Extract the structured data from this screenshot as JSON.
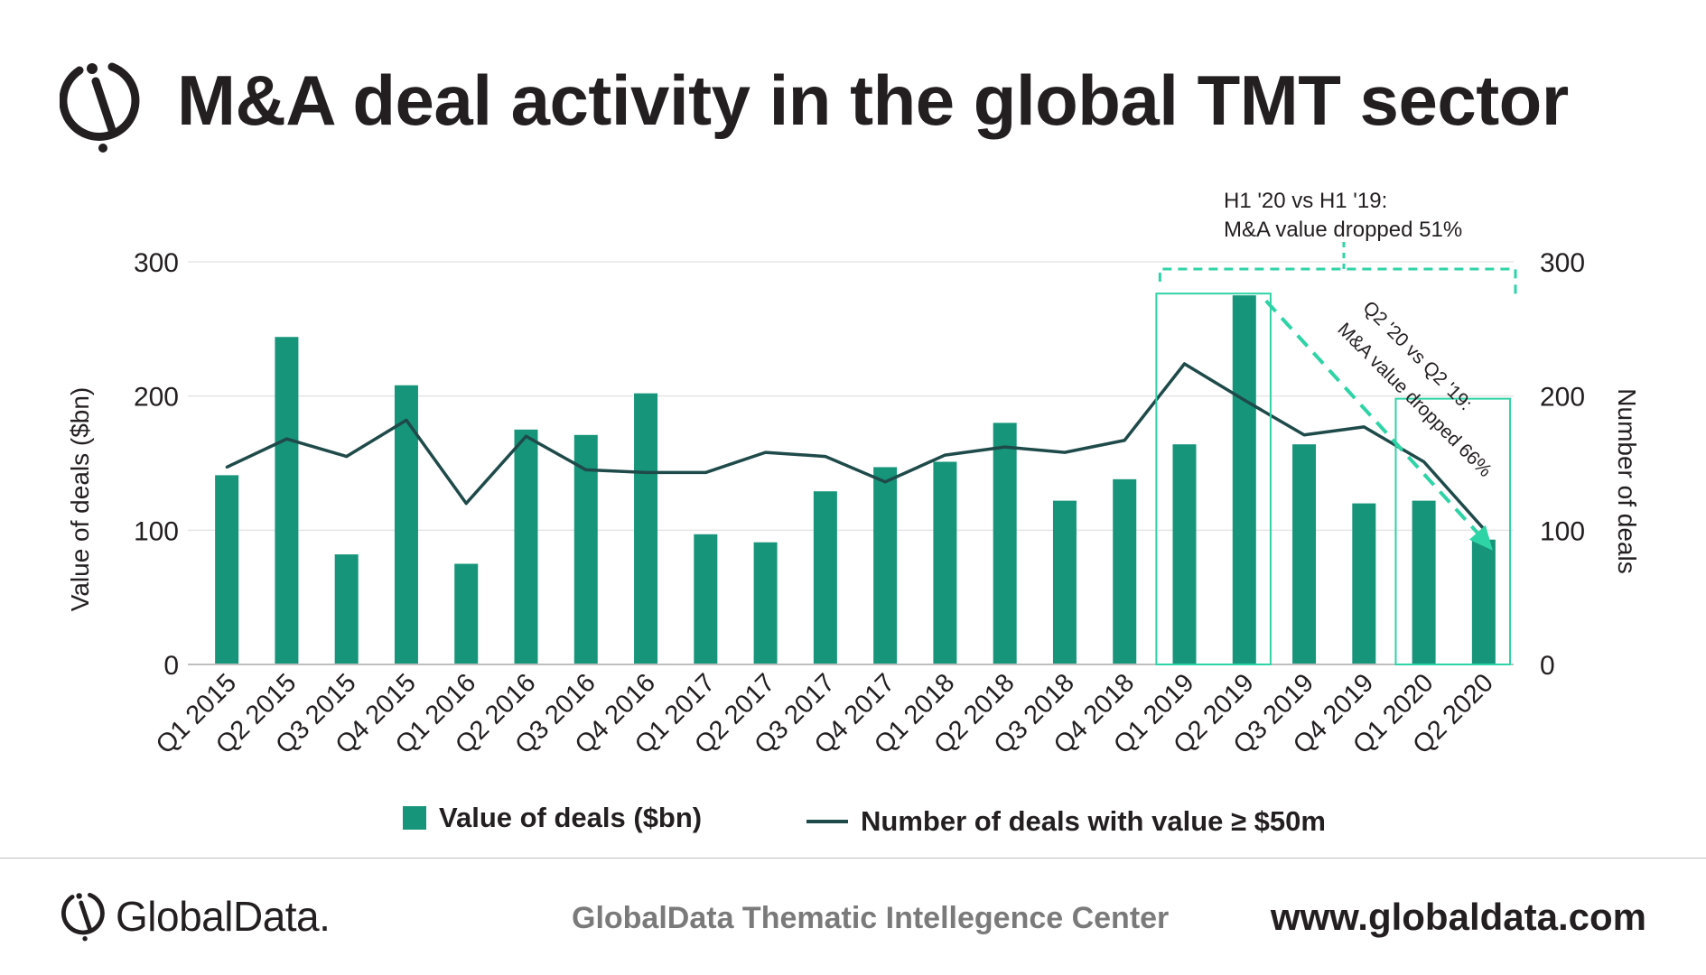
{
  "header": {
    "title": "M&A deal activity in the global TMT sector",
    "logo_icon": "globaldata-logo-icon"
  },
  "colors": {
    "bar": "#16957a",
    "line": "#1f4a4a",
    "annotation": "#2ed3a6",
    "grid": "#e5e5e5",
    "axis": "#bfbfbf",
    "text": "#231f20"
  },
  "chart_data": {
    "type": "bar",
    "title": "M&A deal activity in the global TMT sector",
    "categories": [
      "Q1 2015",
      "Q2 2015",
      "Q3 2015",
      "Q4 2015",
      "Q1 2016",
      "Q2 2016",
      "Q3 2016",
      "Q4 2016",
      "Q1 2017",
      "Q2 2017",
      "Q3 2017",
      "Q4 2017",
      "Q1 2018",
      "Q2 2018",
      "Q3 2018",
      "Q4 2018",
      "Q1 2019",
      "Q2 2019",
      "Q3 2019",
      "Q4 2019",
      "Q1 2020",
      "Q2 2020"
    ],
    "series": [
      {
        "name": "Value of deals ($bn)",
        "type": "bar",
        "axis": "left",
        "values": [
          141,
          244,
          82,
          208,
          75,
          175,
          171,
          202,
          97,
          91,
          129,
          147,
          151,
          180,
          122,
          138,
          164,
          275,
          164,
          120,
          122,
          93
        ]
      },
      {
        "name": "Number of deals with value ≥ $50m",
        "type": "line",
        "axis": "right",
        "values": [
          147,
          168,
          155,
          182,
          120,
          170,
          145,
          143,
          143,
          158,
          155,
          136,
          156,
          162,
          158,
          167,
          224,
          197,
          171,
          177,
          151,
          101
        ]
      }
    ],
    "ylabel": "Value of deals ($bn)",
    "y2label": "Number of deals",
    "ylim": [
      0,
      300
    ],
    "y2lim": [
      0,
      300
    ],
    "yticks": [
      0,
      100,
      200,
      300
    ],
    "y2ticks": [
      0,
      100,
      200,
      300
    ],
    "grid": true,
    "legend": "bottom-center",
    "annotations": [
      {
        "text_lines": [
          "H1 '20 vs H1 '19:",
          "M&A value dropped 51%"
        ],
        "compares": [
          "H1 2019",
          "H1 2020"
        ]
      },
      {
        "text_lines": [
          "Q2 '20  vs Q2 '19:",
          "M&A value dropped   66%"
        ],
        "compares": [
          "Q2 2019",
          "Q2 2020"
        ]
      }
    ]
  },
  "legend": {
    "bar_label": "Value of deals ($bn)",
    "line_label": "Number of deals with value  ≥  $50m"
  },
  "footer": {
    "brand": "GlobalData.",
    "center_text": "GlobalData Thematic Intellegence Center",
    "url": "www.globaldata.com"
  }
}
